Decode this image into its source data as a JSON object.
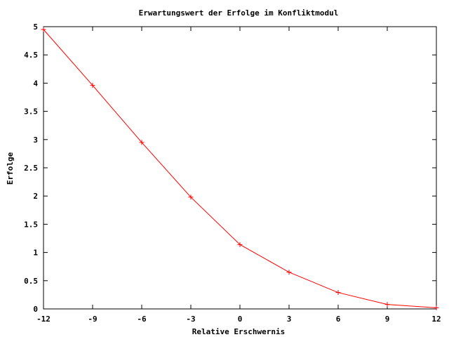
{
  "chart_data": {
    "type": "line",
    "title": "Erwartungswert der Erfolge im Konfliktmodul",
    "xlabel": "Relative Erschwernis",
    "ylabel": "Erfolge",
    "xlim": [
      -12,
      12
    ],
    "ylim": [
      0,
      5
    ],
    "x_ticks": [
      -12,
      -9,
      -6,
      -3,
      0,
      3,
      6,
      9,
      12
    ],
    "x_tick_labels": [
      "-12",
      "-9",
      "-6",
      "-3",
      "0",
      "3",
      "6",
      "9",
      "12"
    ],
    "y_ticks": [
      0,
      0.5,
      1,
      1.5,
      2,
      2.5,
      3,
      3.5,
      4,
      4.5,
      5
    ],
    "y_tick_labels": [
      "0",
      "0.5",
      "1",
      "1.5",
      "2",
      "2.5",
      "3",
      "3.5",
      "4",
      "4.5",
      "5"
    ],
    "grid": false,
    "legend": "none",
    "series": [
      {
        "color": "#ff0000",
        "marker": "plus",
        "x": [
          -12,
          -9,
          -6,
          -3,
          0,
          3,
          6,
          9,
          12
        ],
        "y": [
          4.95,
          3.96,
          2.95,
          1.98,
          1.14,
          0.65,
          0.29,
          0.08,
          0.02
        ]
      }
    ]
  }
}
